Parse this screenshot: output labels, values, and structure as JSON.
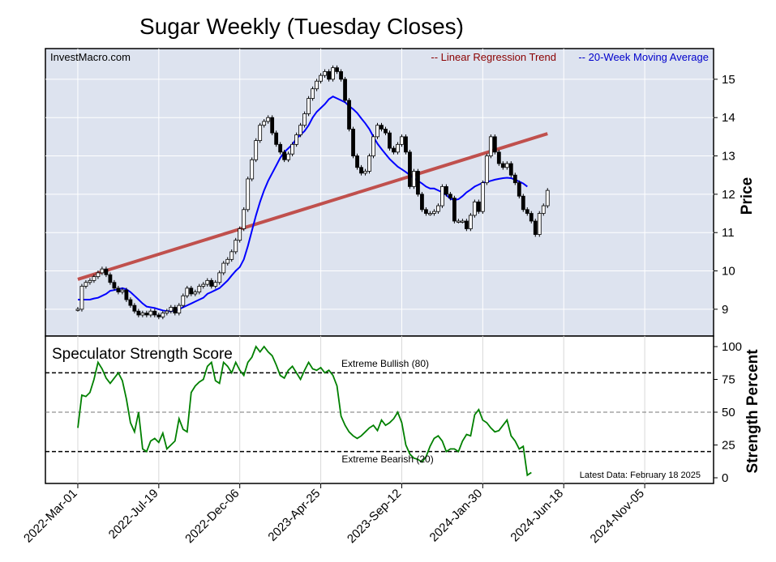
{
  "chart_data": [
    {
      "type": "candlestick",
      "title": "Sugar Weekly (Tuesday Closes)",
      "source": "InvestMacro.com",
      "ylabel": "Price",
      "ylim": [
        8.3,
        15.8
      ],
      "yticks": [
        9,
        10,
        11,
        12,
        13,
        14,
        15
      ],
      "xlim": [
        "2022-01-04",
        "2025-03-04"
      ],
      "xticks": [
        "2022-Mar-01",
        "2022-Jul-19",
        "2022-Dec-06",
        "2023-Apr-25",
        "2023-Sep-12",
        "2024-Jan-30",
        "2024-Jun-18",
        "2024-Nov-05"
      ],
      "xtick_dates": [
        "2022-03-01",
        "2022-07-19",
        "2022-12-06",
        "2023-04-25",
        "2023-09-12",
        "2024-01-30",
        "2024-06-18",
        "2024-11-05"
      ],
      "legend": {
        "placement": "top-right",
        "regression_label": "-- Linear Regression Trend",
        "ma_label": "-- 20-Week Moving Average"
      },
      "colors": {
        "regression": "#c0504d",
        "moving_average": "#0000ff",
        "background": "#dde3ef",
        "bullish": "#ffffff",
        "bearish": "#000000"
      },
      "grid": true,
      "start_date": "2022-03-01",
      "closes": [
        9.0,
        9.6,
        9.7,
        9.75,
        9.85,
        9.95,
        10.05,
        9.9,
        9.7,
        9.55,
        9.45,
        9.5,
        9.25,
        9.1,
        8.95,
        8.85,
        8.9,
        8.85,
        8.95,
        8.85,
        8.8,
        8.9,
        8.95,
        9.05,
        8.9,
        9.1,
        9.35,
        9.55,
        9.4,
        9.45,
        9.6,
        9.65,
        9.75,
        9.6,
        9.7,
        9.95,
        10.2,
        10.3,
        10.5,
        10.8,
        11.1,
        11.6,
        12.4,
        12.9,
        13.4,
        13.8,
        13.9,
        14.0,
        13.6,
        13.3,
        13.1,
        12.9,
        13.05,
        13.3,
        13.55,
        13.8,
        14.1,
        14.5,
        14.75,
        14.95,
        15.1,
        15.2,
        15.0,
        15.3,
        15.2,
        15.0,
        14.45,
        13.7,
        13.0,
        12.7,
        12.55,
        12.6,
        13.0,
        13.5,
        13.8,
        13.7,
        13.6,
        13.2,
        13.1,
        13.3,
        13.5,
        13.1,
        12.2,
        12.6,
        12.0,
        11.6,
        11.5,
        11.5,
        11.55,
        11.7,
        12.2,
        12.0,
        11.9,
        11.3,
        11.3,
        11.3,
        11.1,
        11.45,
        11.8,
        11.55,
        12.3,
        13.0,
        13.5,
        13.1,
        12.8,
        12.7,
        12.8,
        12.5,
        12.3,
        11.95,
        11.6,
        11.5,
        11.3,
        10.95,
        11.5,
        11.7,
        12.1
      ],
      "moving_average": [
        9.25,
        9.25,
        9.25,
        9.25,
        9.28,
        9.3,
        9.35,
        9.4,
        9.48,
        9.5,
        9.52,
        9.55,
        9.52,
        9.45,
        9.35,
        9.25,
        9.15,
        9.07,
        9.05,
        9.03,
        9.0,
        8.97,
        8.95,
        8.95,
        8.97,
        9.0,
        9.05,
        9.1,
        9.15,
        9.2,
        9.25,
        9.3,
        9.4,
        9.45,
        9.5,
        9.55,
        9.65,
        9.75,
        9.88,
        10.0,
        10.1,
        10.3,
        10.65,
        11.05,
        11.45,
        11.8,
        12.1,
        12.35,
        12.55,
        12.75,
        12.95,
        13.1,
        13.2,
        13.3,
        13.45,
        13.55,
        13.65,
        13.8,
        14.0,
        14.15,
        14.25,
        14.35,
        14.48,
        14.55,
        14.5,
        14.45,
        14.4,
        14.3,
        14.22,
        14.12,
        13.98,
        13.85,
        13.7,
        13.5,
        13.32,
        13.18,
        13.05,
        12.92,
        12.82,
        12.72,
        12.65,
        12.58,
        12.5,
        12.42,
        12.35,
        12.28,
        12.2,
        12.15,
        12.15,
        12.1,
        12.05,
        11.98,
        11.88,
        11.85,
        11.87,
        11.95,
        12.05,
        12.12,
        12.2,
        12.25,
        12.3,
        12.32,
        12.35,
        12.38,
        12.4,
        12.42,
        12.43,
        12.42,
        12.38,
        12.33,
        12.28,
        12.2
      ],
      "regression": {
        "start_value": 9.78,
        "end_value": 13.58
      }
    },
    {
      "type": "line",
      "title": "Speculator Strength Score",
      "ylabel": "Strength Percent",
      "ylim": [
        0,
        100
      ],
      "yticks": [
        0,
        25,
        50,
        75,
        100
      ],
      "annotations": {
        "bullish": {
          "value": 80,
          "label": "Extreme Bullish (80)"
        },
        "bearish": {
          "value": 20,
          "label": "Extreme Bearish (20)"
        },
        "midline": 50,
        "latest": "Latest Data: February 18 2025"
      },
      "color": "#008000",
      "values": [
        38,
        63,
        62,
        65,
        75,
        88,
        83,
        76,
        72,
        76,
        80,
        74,
        60,
        42,
        35,
        50,
        22,
        20,
        28,
        30,
        27,
        34,
        22,
        25,
        28,
        45,
        37,
        35,
        65,
        70,
        73,
        75,
        85,
        88,
        74,
        72,
        88,
        85,
        80,
        88,
        82,
        78,
        88,
        92,
        100,
        96,
        100,
        96,
        93,
        86,
        78,
        76,
        82,
        85,
        80,
        75,
        82,
        88,
        83,
        82,
        84,
        80,
        82,
        78,
        70,
        47,
        40,
        35,
        32,
        30,
        32,
        35,
        38,
        40,
        36,
        44,
        40,
        42,
        45,
        50,
        42,
        25,
        18,
        15,
        14,
        12,
        16,
        24,
        30,
        32,
        28,
        20,
        22,
        22,
        20,
        28,
        33,
        32,
        48,
        52,
        44,
        42,
        38,
        35,
        36,
        40,
        44,
        32,
        28,
        22,
        24,
        2,
        4
      ]
    }
  ]
}
